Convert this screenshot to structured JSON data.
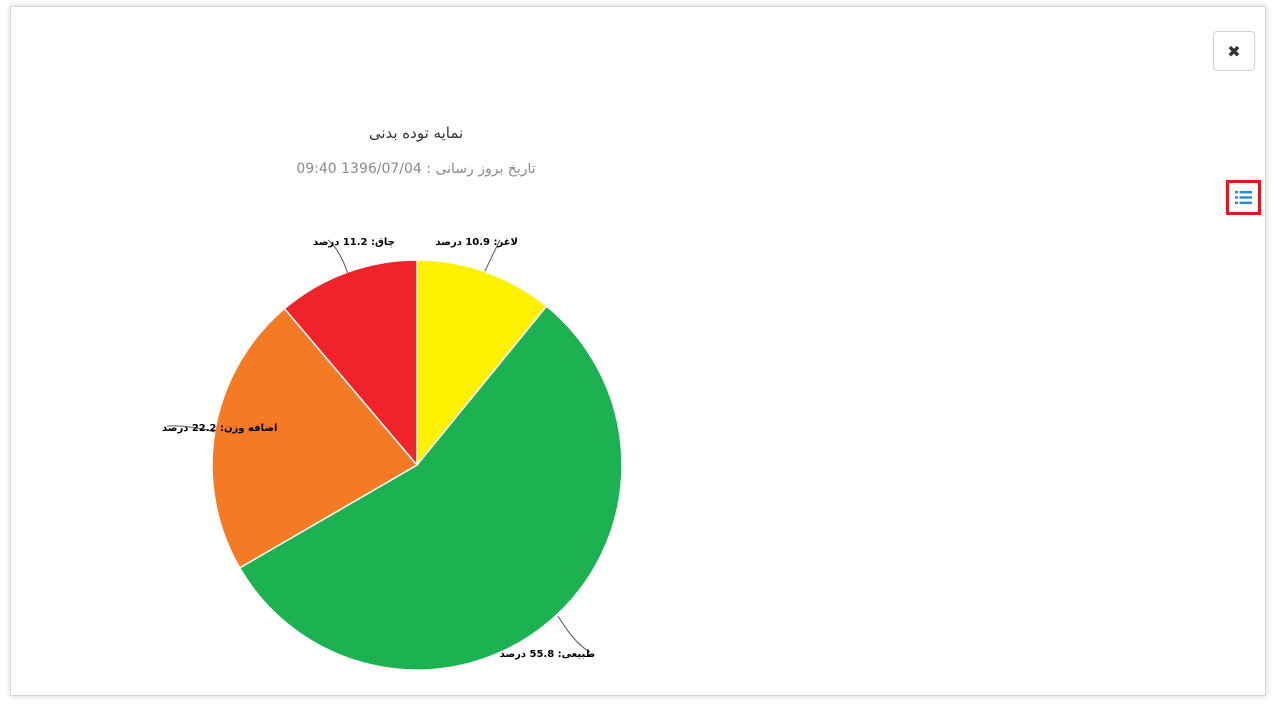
{
  "close_button": {
    "label": "✖"
  },
  "menu_button": {
    "icon": "menu-list-icon",
    "color": "#2a8ad4"
  },
  "chart_data": {
    "type": "pie",
    "title": "نمایه توده بدنی",
    "subtitle": "تاریخ بروز رسانی : 1396/07/04 09:40",
    "slices": [
      {
        "name": "لاغر",
        "value": 10.9,
        "unit": "درصد",
        "label": "لاغر: 10.9 درصد",
        "color": "#fff100"
      },
      {
        "name": "طبیعی",
        "value": 55.8,
        "unit": "درصد",
        "label": "طبیعی: 55.8 درصد",
        "color": "#1cb252"
      },
      {
        "name": "اضافه وزن",
        "value": 22.2,
        "unit": "درصد",
        "label": "اضافه وزن: 22.2 درصد",
        "color": "#f47b23"
      },
      {
        "name": "چاق",
        "value": 11.2,
        "unit": "درصد",
        "label": "چاق: 11.2 درصد",
        "color": "#f0232b"
      }
    ]
  }
}
